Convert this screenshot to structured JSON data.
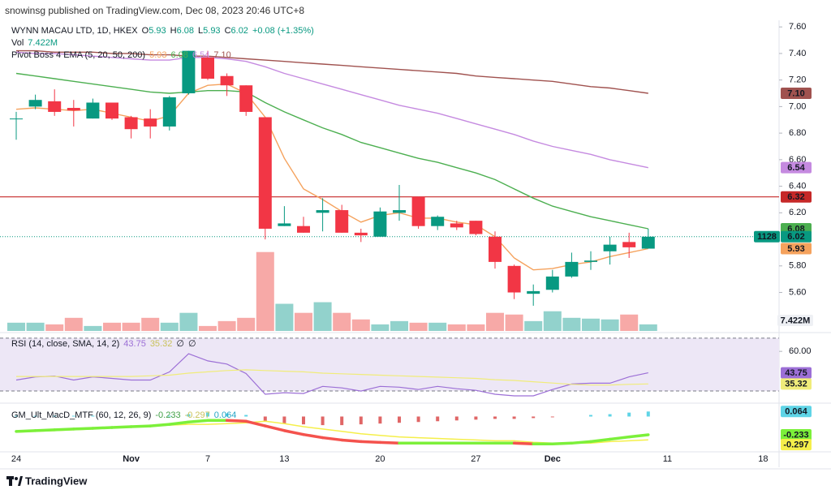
{
  "header": "snowinsg published on TradingView.com, Dec 08, 2023 20:46 UTC+8",
  "footer": "TradingView",
  "chart_data": [
    {
      "type": "candlestick",
      "title": "WYNN MACAU LTD, 1D, HKEX",
      "ohlc_names": [
        "O",
        "H",
        "L",
        "C"
      ],
      "change": "+0.08 (+1.35%)",
      "categories": [
        "24",
        null,
        null,
        null,
        null,
        null,
        "Nov",
        null,
        null,
        null,
        "7",
        null,
        null,
        null,
        "13",
        null,
        null,
        null,
        null,
        "20",
        null,
        null,
        null,
        null,
        "27",
        null,
        null,
        null,
        "Dec",
        null,
        null,
        null,
        null,
        null,
        "11",
        null,
        null,
        null,
        null,
        "18"
      ],
      "open": [
        6.91,
        7.0,
        7.04,
        6.99,
        6.91,
        7.03,
        6.92,
        6.91,
        6.85,
        7.1,
        7.37,
        7.23,
        7.16,
        6.92,
        6.1,
        6.1,
        6.2,
        6.22,
        6.05,
        6.02,
        6.2,
        6.32,
        6.1,
        6.12,
        6.14,
        6.02,
        5.8,
        5.59,
        5.62,
        5.72,
        5.83,
        5.91,
        5.98,
        5.93,
        null,
        null,
        null,
        null,
        null,
        null
      ],
      "high": [
        6.96,
        7.09,
        7.13,
        7.05,
        7.06,
        7.03,
        6.93,
        6.98,
        7.08,
        7.42,
        7.42,
        7.25,
        7.16,
        6.92,
        6.25,
        6.17,
        6.31,
        6.26,
        6.08,
        6.24,
        6.41,
        6.32,
        6.18,
        6.14,
        6.14,
        6.06,
        5.81,
        5.66,
        5.77,
        5.9,
        5.91,
        6.02,
        6.05,
        6.08,
        null,
        null,
        null,
        null,
        null,
        null
      ],
      "low": [
        6.75,
        6.98,
        6.93,
        6.85,
        6.91,
        6.9,
        6.76,
        6.76,
        6.82,
        7.09,
        7.2,
        7.08,
        6.93,
        6.0,
        6.1,
        6.05,
        6.06,
        6.05,
        5.98,
        6.02,
        6.14,
        6.08,
        6.07,
        6.07,
        6.03,
        5.78,
        5.55,
        5.5,
        5.6,
        5.71,
        5.77,
        5.81,
        5.86,
        5.93,
        null,
        null,
        null,
        null,
        null,
        null
      ],
      "close": [
        6.91,
        7.05,
        6.96,
        6.97,
        7.03,
        6.91,
        6.83,
        6.85,
        7.07,
        7.42,
        7.21,
        7.16,
        6.96,
        6.08,
        6.12,
        6.05,
        6.22,
        6.05,
        6.03,
        6.21,
        6.22,
        6.1,
        6.17,
        6.09,
        6.04,
        5.83,
        5.6,
        5.61,
        5.72,
        5.83,
        5.84,
        5.96,
        5.94,
        6.02,
        null,
        null,
        null,
        null,
        null,
        null
      ],
      "color_up": "#089981",
      "color_down": "#f23645",
      "ylim": [
        5.31,
        7.65
      ],
      "yticks": [
        {
          "value": 5.6,
          "label": "5.60"
        },
        {
          "value": 5.8,
          "label": "5.80"
        },
        {
          "value": 6.2,
          "label": "6.20"
        },
        {
          "value": 6.4,
          "label": "6.40"
        },
        {
          "value": 6.6,
          "label": "6.60"
        },
        {
          "value": 6.8,
          "label": "6.80"
        },
        {
          "value": 7,
          "label": "7.00"
        },
        {
          "value": 7.2,
          "label": "7.20"
        },
        {
          "value": 7.4,
          "label": "7.40"
        },
        {
          "value": 7.6,
          "label": "7.60"
        }
      ],
      "hline": 6.32,
      "hline_color": "#c62828",
      "countdown": "1128",
      "volume": {
        "name": "Vol",
        "last_label": "7.422M",
        "vlim": [
          0,
          350
        ],
        "color_up": "#92d2cc",
        "color_down": "#f7a9a7",
        "values": [
          9.3,
          9.3,
          7.4,
          14.8,
          5.6,
          9.3,
          9.3,
          14.8,
          9.3,
          20.4,
          5.6,
          11.1,
          14.8,
          88.9,
          30.6,
          20.4,
          32.4,
          20.4,
          13.0,
          7.4,
          11.1,
          9.3,
          9.3,
          7.4,
          7.4,
          20.4,
          18.5,
          11.1,
          22.2,
          14.8,
          13.9,
          13.0,
          18.5,
          7.422,
          null,
          null,
          null,
          null,
          null,
          null
        ]
      },
      "ema_title": "Pivot Boss 4 EMA (5, 20, 50, 200)",
      "series": [
        {
          "color": "#f5a25d",
          "values": [
            6.98,
            6.99,
            6.98,
            6.97,
            6.98,
            6.95,
            6.92,
            6.89,
            6.93,
            7.1,
            7.16,
            7.17,
            7.1,
            6.92,
            6.61,
            6.38,
            6.3,
            6.21,
            6.13,
            6.18,
            6.2,
            6.16,
            6.16,
            6.13,
            6.11,
            6.02,
            5.86,
            5.77,
            5.78,
            5.81,
            5.83,
            5.87,
            5.9,
            5.93,
            null,
            null,
            null,
            null,
            null,
            null
          ]
        },
        {
          "color": "#4caf50",
          "values": [
            7.25,
            7.23,
            7.21,
            7.19,
            7.17,
            7.15,
            7.13,
            7.11,
            7.1,
            7.11,
            7.12,
            7.12,
            7.11,
            7.03,
            6.96,
            6.9,
            6.84,
            6.79,
            6.73,
            6.69,
            6.65,
            6.61,
            6.58,
            6.54,
            6.5,
            6.45,
            6.38,
            6.31,
            6.25,
            6.21,
            6.17,
            6.14,
            6.11,
            6.08,
            null,
            null,
            null,
            null,
            null,
            null
          ]
        },
        {
          "color": "#c58ae0",
          "values": [
            7.41,
            7.4,
            7.4,
            7.39,
            7.38,
            7.37,
            7.36,
            7.35,
            7.35,
            7.37,
            7.37,
            7.36,
            7.34,
            7.3,
            7.25,
            7.21,
            7.17,
            7.13,
            7.09,
            7.05,
            7.01,
            6.98,
            6.95,
            6.91,
            6.87,
            6.83,
            6.79,
            6.74,
            6.7,
            6.67,
            6.64,
            6.6,
            6.57,
            6.54,
            null,
            null,
            null,
            null,
            null,
            null
          ]
        },
        {
          "color": "#a0524f",
          "last_label": "7.10",
          "values": [
            7.42,
            7.42,
            7.41,
            7.41,
            7.41,
            7.4,
            7.4,
            7.39,
            7.39,
            7.38,
            7.38,
            7.37,
            7.36,
            7.35,
            7.34,
            7.33,
            7.32,
            7.31,
            7.3,
            7.29,
            7.28,
            7.27,
            7.26,
            7.25,
            7.23,
            7.22,
            7.21,
            7.2,
            7.19,
            7.17,
            7.15,
            7.14,
            7.12,
            7.1,
            null,
            null,
            null,
            null,
            null,
            null
          ]
        }
      ]
    },
    {
      "type": "line",
      "title": "RSI (14, close, SMA, 14, 2)",
      "na_labels": [
        "∅",
        "∅"
      ],
      "ylim": [
        22,
        73
      ],
      "yticks": [
        {
          "value": 60,
          "label": "60.00"
        }
      ],
      "bands": [
        30,
        70
      ],
      "band_color": "#ede7f6",
      "series": [
        {
          "color": "#9c6fd6",
          "text_color": "#ffffff",
          "values": [
            38.3,
            40.7,
            41.3,
            38.3,
            40.7,
            39.5,
            38.3,
            38.3,
            44.4,
            58.2,
            52.8,
            50.4,
            43.2,
            27.5,
            28.7,
            28.1,
            33.5,
            32.3,
            29.9,
            33.5,
            32.9,
            31.1,
            33.5,
            31.7,
            30.5,
            27.5,
            26.3,
            26.3,
            31.1,
            35.3,
            35.9,
            35.9,
            40.7,
            43.75,
            null,
            null,
            null,
            null,
            null,
            null
          ]
        },
        {
          "color": "#f0ec7a",
          "text_color": "#131722",
          "values": [
            41.0,
            41.0,
            41.0,
            41.0,
            41.0,
            41.0,
            41.0,
            41.5,
            42.0,
            43.5,
            44.5,
            45.5,
            46.0,
            45.5,
            45.0,
            44.5,
            43.5,
            43.0,
            42.5,
            42.0,
            41.5,
            41.0,
            40.5,
            40.0,
            39.5,
            38.5,
            38.0,
            37.0,
            36.0,
            35.0,
            34.5,
            34.5,
            35.0,
            35.32,
            null,
            null,
            null,
            null,
            null,
            null
          ]
        }
      ]
    },
    {
      "type": "macd",
      "title": "GM_Ult_MacD_MTF (60, 12, 26, 9)",
      "ylim": [
        -0.43,
        0.15
      ],
      "macd": {
        "color_up": "#7cf03a",
        "color_down": "#f4524d",
        "values": [
          -0.19,
          -0.18,
          -0.17,
          -0.16,
          -0.15,
          -0.14,
          -0.13,
          -0.12,
          -0.1,
          -0.07,
          -0.05,
          -0.05,
          -0.06,
          -0.12,
          -0.18,
          -0.23,
          -0.27,
          -0.3,
          -0.32,
          -0.33,
          -0.34,
          -0.34,
          -0.34,
          -0.34,
          -0.34,
          -0.34,
          -0.34,
          -0.35,
          -0.35,
          -0.34,
          -0.32,
          -0.29,
          -0.26,
          -0.233,
          null,
          null,
          null,
          null,
          null,
          null
        ]
      },
      "signal": {
        "color": "#f5ef4a",
        "values": [
          -0.2,
          -0.19,
          -0.18,
          -0.17,
          -0.16,
          -0.14,
          -0.13,
          -0.12,
          -0.11,
          -0.1,
          -0.1,
          -0.09,
          -0.08,
          -0.06,
          -0.09,
          -0.13,
          -0.16,
          -0.19,
          -0.22,
          -0.24,
          -0.26,
          -0.27,
          -0.28,
          -0.29,
          -0.3,
          -0.31,
          -0.31,
          -0.33,
          -0.34,
          -0.34,
          -0.34,
          -0.32,
          -0.31,
          -0.297,
          null,
          null,
          null,
          null,
          null,
          null
        ]
      },
      "histogram": {
        "color_up": "#5fd4e6",
        "color_down": "#e06666",
        "values": [
          0.01,
          0.01,
          0.01,
          0.01,
          0.01,
          0.0,
          0.0,
          0.0,
          0.01,
          0.03,
          0.05,
          0.04,
          0.02,
          -0.06,
          -0.09,
          -0.1,
          -0.11,
          -0.11,
          -0.1,
          -0.09,
          -0.08,
          -0.07,
          -0.06,
          -0.05,
          -0.04,
          -0.03,
          -0.03,
          -0.02,
          -0.01,
          0.0,
          0.02,
          0.03,
          0.05,
          0.064,
          null,
          null,
          null,
          null,
          null,
          null
        ]
      }
    }
  ]
}
